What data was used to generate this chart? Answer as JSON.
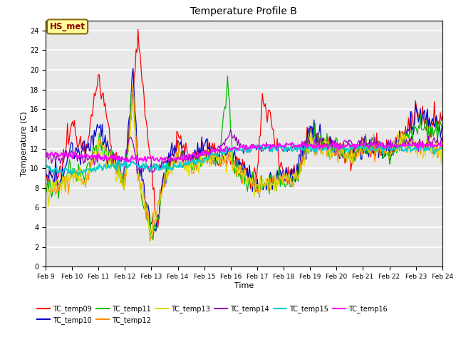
{
  "title": "Temperature Profile B",
  "xlabel": "Time",
  "ylabel": "Temperature (C)",
  "ylim": [
    0,
    25
  ],
  "yticks": [
    0,
    2,
    4,
    6,
    8,
    10,
    12,
    14,
    16,
    18,
    20,
    22,
    24
  ],
  "annotation_text": "HS_met",
  "annotation_box_color": "#FFFF99",
  "annotation_box_edge": "#8B6914",
  "annotation_text_color": "#8B0000",
  "background_color": "#E8E8E8",
  "fig_background": "#FFFFFF",
  "grid_color": "white",
  "series_colors": {
    "TC_temp09": "#FF0000",
    "TC_temp10": "#0000CC",
    "TC_temp11": "#00BB00",
    "TC_temp12": "#FF8C00",
    "TC_temp13": "#DDDD00",
    "TC_temp14": "#9900BB",
    "TC_temp15": "#00CCCC",
    "TC_temp16": "#FF00FF"
  },
  "x_labels": [
    "Feb 9",
    "Feb 10",
    "Feb 11",
    "Feb 12",
    "Feb 13",
    "Feb 14",
    "Feb 15",
    "Feb 16",
    "Feb 17",
    "Feb 18",
    "Feb 19",
    "Feb 20",
    "Feb 21",
    "Feb 22",
    "Feb 23",
    "Feb 24"
  ],
  "x_positions": [
    0,
    1,
    2,
    3,
    4,
    5,
    6,
    7,
    8,
    9,
    10,
    11,
    12,
    13,
    14,
    15
  ],
  "legend_order": [
    "TC_temp09",
    "TC_temp10",
    "TC_temp11",
    "TC_temp12",
    "TC_temp13",
    "TC_temp14",
    "TC_temp15",
    "TC_temp16"
  ]
}
